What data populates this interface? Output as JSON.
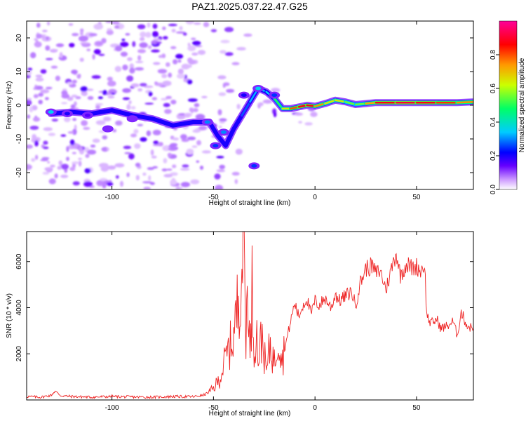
{
  "figure": {
    "title": "PAZ1.2025.037.22.47.G25"
  },
  "chart_data": [
    {
      "type": "heatmap",
      "title": "PAZ1.2025.037.22.47.G25",
      "xlabel": "Height of straight line (km)",
      "ylabel": "Frequency (Hz)",
      "xlim": [
        -142,
        78
      ],
      "ylim": [
        -25,
        25
      ],
      "x_ticks": [
        -100,
        -50,
        0,
        50
      ],
      "y_ticks": [
        -20,
        -10,
        0,
        10,
        20
      ],
      "colorbar": {
        "label": "Normalized spectral amplitude",
        "range": [
          0,
          1
        ],
        "ticks": [
          0.0,
          0.2,
          0.4,
          0.6,
          0.8
        ],
        "tick_labels": [
          "0.0",
          "0.2",
          "0.4",
          "0.6",
          "0.8"
        ],
        "colors": [
          "#ffffff",
          "#cc99ff",
          "#6600ff",
          "#0000ff",
          "#00ccff",
          "#00ff66",
          "#ccff00",
          "#ff9900",
          "#ff0000",
          "#ff0099"
        ]
      },
      "ridge": {
        "name": "dominant frequency track",
        "x": [
          -130,
          -120,
          -110,
          -100,
          -90,
          -80,
          -70,
          -60,
          -52,
          -48,
          -44,
          -40,
          -36,
          -32,
          -28,
          -24,
          -20,
          -16,
          -12,
          -8,
          -4,
          0,
          5,
          10,
          15,
          20,
          25,
          30,
          40,
          50,
          60,
          70,
          78
        ],
        "y": [
          -2.5,
          -2,
          -2.5,
          -1.5,
          -3,
          -4,
          -6,
          -5,
          -5,
          -9,
          -12,
          -7,
          -3,
          1,
          5,
          4,
          2,
          -1,
          -1,
          -0.5,
          0,
          -0.3,
          0.5,
          1.5,
          1.0,
          0.2,
          0.5,
          0.8,
          0.8,
          0.8,
          0.8,
          0.8,
          1.0
        ],
        "amp": [
          0.3,
          0.15,
          0.1,
          0.1,
          0.1,
          0.1,
          0.1,
          0.1,
          0.15,
          0.2,
          0.2,
          0.2,
          0.25,
          0.3,
          0.35,
          0.3,
          0.4,
          0.6,
          0.7,
          0.9,
          0.85,
          0.9,
          0.6,
          0.7,
          0.6,
          0.5,
          0.6,
          0.85,
          0.9,
          0.9,
          0.85,
          0.8,
          0.7
        ]
      },
      "blobs": [
        {
          "x": -130,
          "y": -2,
          "amp": 0.35
        },
        {
          "x": -122,
          "y": -2.5,
          "amp": 0.2
        },
        {
          "x": -112,
          "y": -3,
          "amp": 0.15
        },
        {
          "x": -102,
          "y": -7,
          "amp": 0.12
        },
        {
          "x": -90,
          "y": -4,
          "amp": 0.12
        },
        {
          "x": -53,
          "y": -5,
          "amp": 0.3
        },
        {
          "x": -45,
          "y": -8,
          "amp": 0.3
        },
        {
          "x": -49,
          "y": -12,
          "amp": 0.25
        },
        {
          "x": -30,
          "y": -18,
          "amp": 0.25
        },
        {
          "x": -28,
          "y": 5,
          "amp": 0.35
        },
        {
          "x": -35,
          "y": 3,
          "amp": 0.2
        },
        {
          "x": -20,
          "y": 3,
          "amp": 0.25
        }
      ]
    },
    {
      "type": "line",
      "xlabel": "Height of straight line (km)",
      "ylabel": "SNR (10 * v/v)",
      "xlim": [
        -142,
        78
      ],
      "ylim": [
        0,
        7300
      ],
      "x_ticks": [
        -100,
        -50,
        0,
        50
      ],
      "y_ticks": [
        2000,
        4000,
        6000
      ],
      "series": [
        {
          "color": "#ee2222",
          "x": [
            -142,
            -135,
            -130,
            -128,
            -125,
            -120,
            -110,
            -100,
            -90,
            -80,
            -70,
            -60,
            -55,
            -52,
            -50,
            -47,
            -44,
            -40,
            -38,
            -36,
            -35,
            -34,
            -33,
            -32,
            -31,
            -30,
            -29,
            -28,
            -26,
            -24,
            -22,
            -20,
            -18,
            -16,
            -14,
            -12,
            -10,
            -8,
            -6,
            -4,
            -2,
            0,
            2,
            5,
            8,
            10,
            12,
            15,
            18,
            20,
            22,
            25,
            28,
            30,
            32,
            35,
            38,
            40,
            42,
            45,
            48,
            50,
            52,
            54,
            55,
            57,
            60,
            62,
            65,
            68,
            70,
            72,
            75,
            78
          ],
          "y": [
            150,
            120,
            200,
            380,
            180,
            150,
            120,
            150,
            130,
            120,
            150,
            140,
            200,
            350,
            500,
            900,
            1800,
            2800,
            4200,
            6000,
            7300,
            2500,
            5800,
            1500,
            4800,
            2200,
            3200,
            1800,
            2800,
            1200,
            2400,
            1600,
            2900,
            1800,
            2600,
            3400,
            4200,
            3600,
            4100,
            4400,
            3700,
            4300,
            4100,
            4400,
            4000,
            4600,
            4300,
            4500,
            4700,
            4100,
            5000,
            5700,
            5800,
            5500,
            5600,
            4800,
            5800,
            6400,
            5400,
            5900,
            5700,
            5800,
            5600,
            5900,
            3700,
            3300,
            3500,
            3100,
            3200,
            3400,
            2800,
            3800,
            3200,
            3100
          ]
        }
      ]
    }
  ]
}
